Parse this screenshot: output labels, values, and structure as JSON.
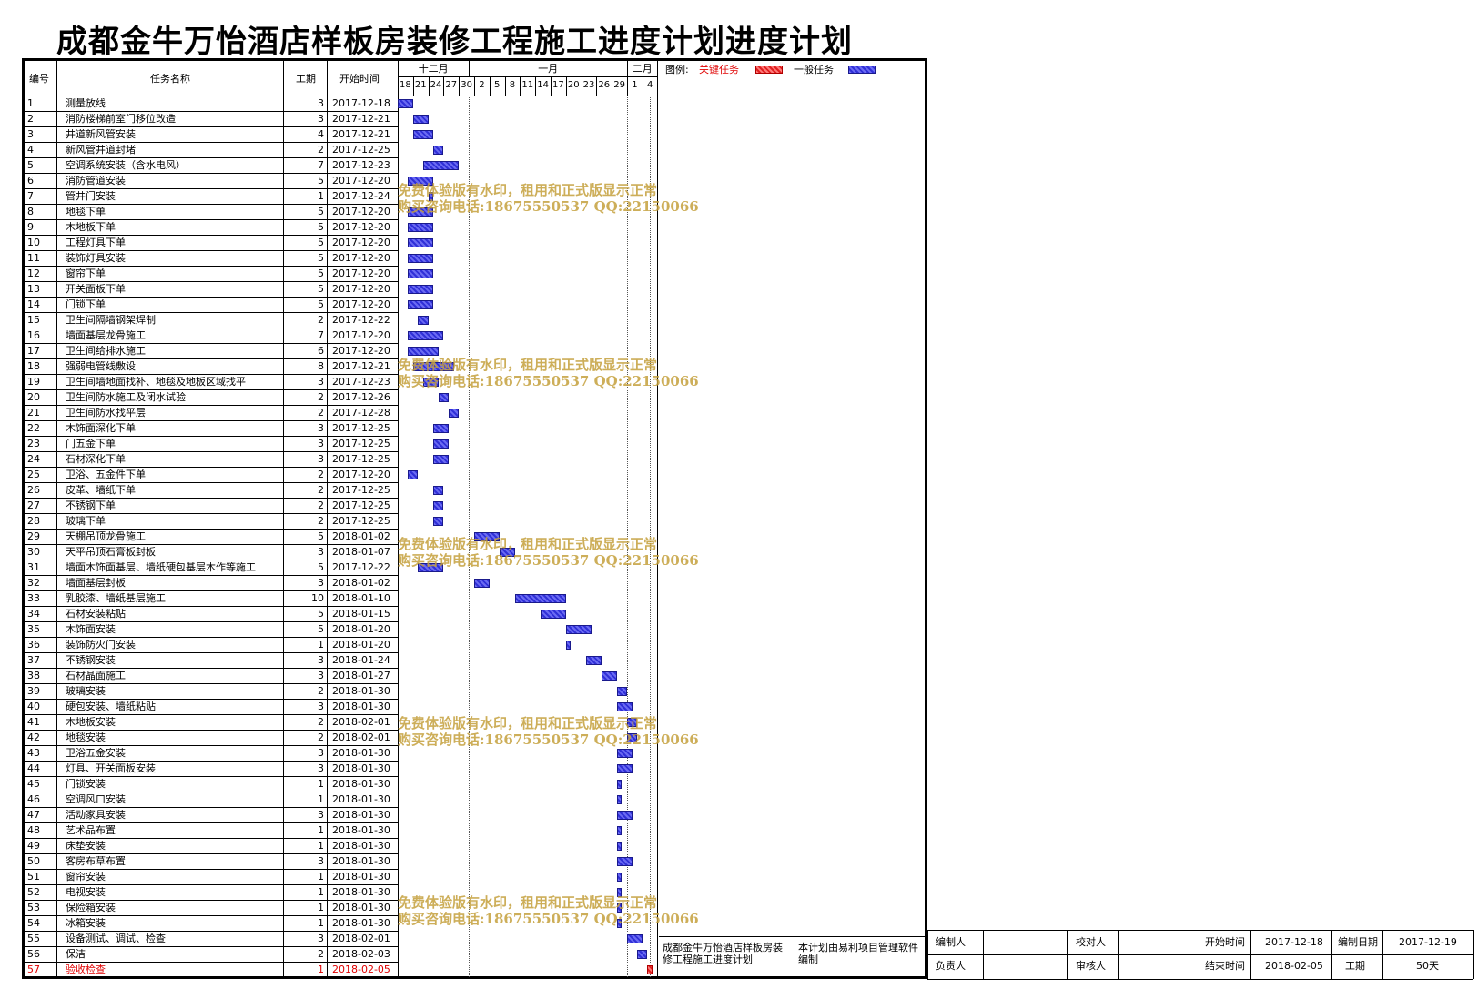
{
  "title": "成都金牛万怡酒店样板房装修工程施工进度计划进度计划",
  "headers": {
    "no": "编号",
    "name": "任务名称",
    "dur": "工期",
    "start": "开始时间"
  },
  "months": [
    "十二月",
    "一月",
    "二月"
  ],
  "days": [
    "18",
    "21",
    "24",
    "27",
    "30",
    "2",
    "5",
    "8",
    "11",
    "14",
    "17",
    "20",
    "23",
    "26",
    "29",
    "1",
    "4"
  ],
  "legend": {
    "label": "图例:",
    "critical": "关键任务",
    "normal": "一般任务",
    "critical_color": "#e02020",
    "normal_color": "#3030d8"
  },
  "watermark": {
    "line1": "免费体验版有水印，租用和正式版显示正常",
    "line2": "购买咨询电话:18675550537 QQ:22150066"
  },
  "tasks": [
    {
      "no": "1",
      "name": "测量放线",
      "dur": "3",
      "start": "2017-12-18"
    },
    {
      "no": "2",
      "name": "消防楼梯前室门移位改造",
      "dur": "3",
      "start": "2017-12-21"
    },
    {
      "no": "3",
      "name": "井道新风管安装",
      "dur": "4",
      "start": "2017-12-21"
    },
    {
      "no": "4",
      "name": "新风管井道封堵",
      "dur": "2",
      "start": "2017-12-25"
    },
    {
      "no": "5",
      "name": "空调系统安装（含水电风）",
      "dur": "7",
      "start": "2017-12-23"
    },
    {
      "no": "6",
      "name": "消防管道安装",
      "dur": "5",
      "start": "2017-12-20"
    },
    {
      "no": "7",
      "name": "管井门安装",
      "dur": "1",
      "start": "2017-12-24"
    },
    {
      "no": "8",
      "name": "地毯下单",
      "dur": "5",
      "start": "2017-12-20"
    },
    {
      "no": "9",
      "name": "木地板下单",
      "dur": "5",
      "start": "2017-12-20"
    },
    {
      "no": "10",
      "name": "工程灯具下单",
      "dur": "5",
      "start": "2017-12-20"
    },
    {
      "no": "11",
      "name": "装饰灯具安装",
      "dur": "5",
      "start": "2017-12-20"
    },
    {
      "no": "12",
      "name": "窗帘下单",
      "dur": "5",
      "start": "2017-12-20"
    },
    {
      "no": "13",
      "name": "开关面板下单",
      "dur": "5",
      "start": "2017-12-20"
    },
    {
      "no": "14",
      "name": "门锁下单",
      "dur": "5",
      "start": "2017-12-20"
    },
    {
      "no": "15",
      "name": "卫生间隔墙钢架焊制",
      "dur": "2",
      "start": "2017-12-22"
    },
    {
      "no": "16",
      "name": "墙面基层龙骨施工",
      "dur": "7",
      "start": "2017-12-20"
    },
    {
      "no": "17",
      "name": "卫生间给排水施工",
      "dur": "6",
      "start": "2017-12-20"
    },
    {
      "no": "18",
      "name": "强弱电管线敷设",
      "dur": "8",
      "start": "2017-12-21"
    },
    {
      "no": "19",
      "name": "卫生间墙地面找补、地毯及地板区域找平",
      "dur": "3",
      "start": "2017-12-23"
    },
    {
      "no": "20",
      "name": "卫生间防水施工及闭水试验",
      "dur": "2",
      "start": "2017-12-26"
    },
    {
      "no": "21",
      "name": "卫生间防水找平层",
      "dur": "2",
      "start": "2017-12-28"
    },
    {
      "no": "22",
      "name": "木饰面深化下单",
      "dur": "3",
      "start": "2017-12-25"
    },
    {
      "no": "23",
      "name": "门五金下单",
      "dur": "3",
      "start": "2017-12-25"
    },
    {
      "no": "24",
      "name": "石材深化下单",
      "dur": "3",
      "start": "2017-12-25"
    },
    {
      "no": "25",
      "name": "卫浴、五金件下单",
      "dur": "2",
      "start": "2017-12-20"
    },
    {
      "no": "26",
      "name": "皮革、墙纸下单",
      "dur": "2",
      "start": "2017-12-25"
    },
    {
      "no": "27",
      "name": "不锈钢下单",
      "dur": "2",
      "start": "2017-12-25"
    },
    {
      "no": "28",
      "name": "玻璃下单",
      "dur": "2",
      "start": "2017-12-25"
    },
    {
      "no": "29",
      "name": "天棚吊顶龙骨施工",
      "dur": "5",
      "start": "2018-01-02"
    },
    {
      "no": "30",
      "name": "天平吊顶石膏板封板",
      "dur": "3",
      "start": "2018-01-07"
    },
    {
      "no": "31",
      "name": "墙面木饰面基层、墙纸硬包基层木作等施工",
      "dur": "5",
      "start": "2017-12-22"
    },
    {
      "no": "32",
      "name": "墙面基层封板",
      "dur": "3",
      "start": "2018-01-02"
    },
    {
      "no": "33",
      "name": "乳胶漆、墙纸基层施工",
      "dur": "10",
      "start": "2018-01-10"
    },
    {
      "no": "34",
      "name": "石材安装粘贴",
      "dur": "5",
      "start": "2018-01-15"
    },
    {
      "no": "35",
      "name": "木饰面安装",
      "dur": "5",
      "start": "2018-01-20"
    },
    {
      "no": "36",
      "name": "装饰防火门安装",
      "dur": "1",
      "start": "2018-01-20"
    },
    {
      "no": "37",
      "name": "不锈钢安装",
      "dur": "3",
      "start": "2018-01-24"
    },
    {
      "no": "38",
      "name": "石材晶面施工",
      "dur": "3",
      "start": "2018-01-27"
    },
    {
      "no": "39",
      "name": "玻璃安装",
      "dur": "2",
      "start": "2018-01-30"
    },
    {
      "no": "40",
      "name": "硬包安装、墙纸粘贴",
      "dur": "3",
      "start": "2018-01-30"
    },
    {
      "no": "41",
      "name": "木地板安装",
      "dur": "2",
      "start": "2018-02-01"
    },
    {
      "no": "42",
      "name": "地毯安装",
      "dur": "2",
      "start": "2018-02-01"
    },
    {
      "no": "43",
      "name": "卫浴五金安装",
      "dur": "3",
      "start": "2018-01-30"
    },
    {
      "no": "44",
      "name": "灯具、开关面板安装",
      "dur": "3",
      "start": "2018-01-30"
    },
    {
      "no": "45",
      "name": "门锁安装",
      "dur": "1",
      "start": "2018-01-30"
    },
    {
      "no": "46",
      "name": "空调风口安装",
      "dur": "1",
      "start": "2018-01-30"
    },
    {
      "no": "47",
      "name": "活动家具安装",
      "dur": "3",
      "start": "2018-01-30"
    },
    {
      "no": "48",
      "name": "艺术品布置",
      "dur": "1",
      "start": "2018-01-30"
    },
    {
      "no": "49",
      "name": "床垫安装",
      "dur": "1",
      "start": "2018-01-30"
    },
    {
      "no": "50",
      "name": "客房布草布置",
      "dur": "3",
      "start": "2018-01-30"
    },
    {
      "no": "51",
      "name": "窗帘安装",
      "dur": "1",
      "start": "2018-01-30"
    },
    {
      "no": "52",
      "name": "电视安装",
      "dur": "1",
      "start": "2018-01-30"
    },
    {
      "no": "53",
      "name": "保险箱安装",
      "dur": "1",
      "start": "2018-01-30"
    },
    {
      "no": "54",
      "name": "冰箱安装",
      "dur": "1",
      "start": "2018-01-30"
    },
    {
      "no": "55",
      "name": "设备测试、调试、检查",
      "dur": "3",
      "start": "2018-02-01"
    },
    {
      "no": "56",
      "name": "保洁",
      "dur": "2",
      "start": "2018-02-03"
    },
    {
      "no": "57",
      "name": "验收检查",
      "dur": "1",
      "start": "2018-02-05",
      "critical": true
    }
  ],
  "footer": {
    "project_name": "成都金牛万怡酒店样板房装修工程施工进度计划",
    "software_note": "本计划由易利项目管理软件编制",
    "preparer_label": "编制人",
    "preparer": "",
    "checker_label": "校对人",
    "checker": "",
    "start_label": "开始时间",
    "start": "2017-12-18",
    "date_label": "编制日期",
    "date": "2017-12-19",
    "owner_label": "负责人",
    "owner": "",
    "reviewer_label": "审核人",
    "reviewer": "",
    "end_label": "结束时间",
    "end": "2018-02-05",
    "duration_label": "工期",
    "duration": "50天"
  }
}
